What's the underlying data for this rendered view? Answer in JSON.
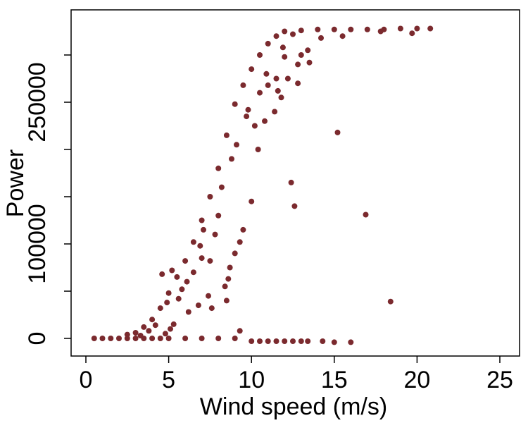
{
  "chart_data": {
    "type": "scatter",
    "title": "",
    "xlabel": "Wind speed (m/s)",
    "ylabel": "Power",
    "xlim": [
      -0.5,
      26
    ],
    "ylim": [
      -25000,
      335000
    ],
    "x_ticks": [
      0,
      5,
      10,
      15,
      20,
      25
    ],
    "x_tick_labels": [
      "0",
      "5",
      "10",
      "15",
      "20",
      "25"
    ],
    "y_ticks": [
      0,
      50000,
      100000,
      150000,
      200000,
      250000,
      300000
    ],
    "y_tick_labels": [
      "0",
      "",
      "100000",
      "",
      "",
      "250000",
      ""
    ],
    "grid": false,
    "marker_color": "#7b2a2e",
    "series": [
      {
        "points": [
          [
            0.5,
            0
          ],
          [
            1,
            0
          ],
          [
            1.5,
            0
          ],
          [
            2,
            0
          ],
          [
            2.5,
            0
          ],
          [
            3,
            0
          ],
          [
            3.5,
            0
          ],
          [
            4,
            0
          ],
          [
            4.5,
            0
          ],
          [
            5,
            0
          ],
          [
            6,
            0
          ],
          [
            7,
            0
          ],
          [
            8,
            0
          ],
          [
            9,
            0
          ],
          [
            9.3,
            8000
          ],
          [
            10,
            -3000
          ],
          [
            10.5,
            -3000
          ],
          [
            11,
            -3000
          ],
          [
            11.5,
            -3000
          ],
          [
            12,
            -3000
          ],
          [
            12.5,
            -3000
          ],
          [
            13,
            -3000
          ],
          [
            13.4,
            -3000
          ],
          [
            14.3,
            -3000
          ],
          [
            15,
            -4000
          ],
          [
            16,
            -4000
          ],
          [
            2.5,
            4000
          ],
          [
            3,
            6000
          ],
          [
            3.5,
            12000
          ],
          [
            4,
            20000
          ],
          [
            4.5,
            32000
          ],
          [
            5,
            48000
          ],
          [
            5.5,
            65000
          ],
          [
            6,
            82000
          ],
          [
            6.5,
            102000
          ],
          [
            7,
            125000
          ],
          [
            7.5,
            150000
          ],
          [
            8,
            180000
          ],
          [
            8.5,
            215000
          ],
          [
            9,
            248000
          ],
          [
            9.5,
            268000
          ],
          [
            10,
            285000
          ],
          [
            10.5,
            300000
          ],
          [
            11,
            312000
          ],
          [
            11.5,
            320000
          ],
          [
            12,
            325000
          ],
          [
            13,
            326000
          ],
          [
            14,
            327000
          ],
          [
            15,
            327000
          ],
          [
            16,
            327000
          ],
          [
            17,
            327000
          ],
          [
            18,
            327000
          ],
          [
            19,
            328000
          ],
          [
            20,
            328000
          ],
          [
            20.8,
            328000
          ],
          [
            4.6,
            68000
          ],
          [
            5.2,
            72000
          ],
          [
            4.8,
            5000
          ],
          [
            5.1,
            10000
          ],
          [
            5.3,
            15000
          ],
          [
            6.2,
            28000
          ],
          [
            6.8,
            35000
          ],
          [
            7.4,
            45000
          ],
          [
            7.6,
            32000
          ],
          [
            8.4,
            55000
          ],
          [
            8.6,
            63000
          ],
          [
            9,
            90000
          ],
          [
            9.3,
            102000
          ],
          [
            7.1,
            115000
          ],
          [
            7.5,
            82000
          ],
          [
            8.5,
            40000
          ],
          [
            8.7,
            75000
          ],
          [
            9.5,
            115000
          ],
          [
            10,
            145000
          ],
          [
            10.4,
            200000
          ],
          [
            10.8,
            230000
          ],
          [
            11.4,
            240000
          ],
          [
            11.8,
            255000
          ],
          [
            12.2,
            275000
          ],
          [
            12.8,
            290000
          ],
          [
            13,
            300000
          ],
          [
            11.5,
            275000
          ],
          [
            12.4,
            165000
          ],
          [
            12.6,
            140000
          ],
          [
            15.2,
            218000
          ],
          [
            16.9,
            131000
          ],
          [
            18.4,
            39000
          ],
          [
            12,
            298000
          ],
          [
            13.4,
            305000
          ],
          [
            14.2,
            318000
          ],
          [
            15.5,
            320000
          ],
          [
            17.8,
            325000
          ],
          [
            19.7,
            323000
          ],
          [
            13.5,
            292000
          ],
          [
            12.8,
            270000
          ],
          [
            11,
            268000
          ],
          [
            10.5,
            260000
          ],
          [
            9.8,
            242000
          ],
          [
            10.2,
            225000
          ],
          [
            11.6,
            262000
          ],
          [
            8.2,
            160000
          ],
          [
            8.8,
            190000
          ],
          [
            9.1,
            205000
          ],
          [
            6.5,
            70000
          ],
          [
            7,
            85000
          ],
          [
            7.8,
            110000
          ],
          [
            5.8,
            52000
          ],
          [
            6.1,
            60000
          ],
          [
            3.8,
            8000
          ],
          [
            4.2,
            14000
          ],
          [
            3.3,
            3000
          ],
          [
            4.9,
            38000
          ],
          [
            5.6,
            42000
          ],
          [
            6.9,
            98000
          ],
          [
            8,
            130000
          ],
          [
            9.7,
            235000
          ],
          [
            10.9,
            280000
          ],
          [
            11.9,
            308000
          ],
          [
            12.5,
            322000
          ]
        ]
      }
    ]
  }
}
